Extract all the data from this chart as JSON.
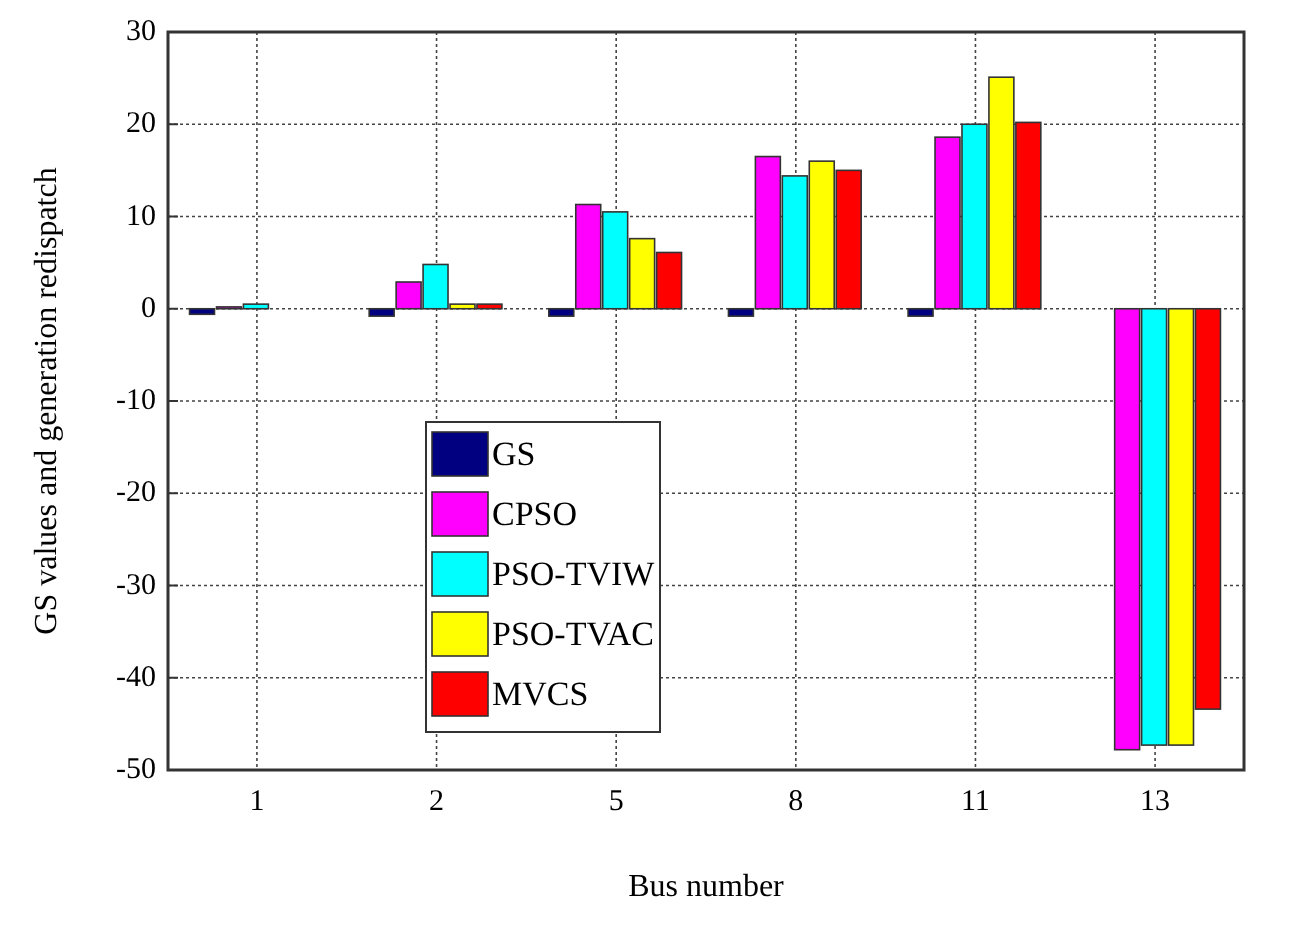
{
  "chart_data": {
    "type": "bar",
    "xlabel": "Bus number",
    "ylabel": "GS values and generation redispatch",
    "categories": [
      "1",
      "2",
      "5",
      "8",
      "11",
      "13"
    ],
    "series": [
      {
        "name": "GS",
        "color": "#000080",
        "values": [
          -0.6,
          -0.8,
          -0.8,
          -0.8,
          -0.8,
          0
        ]
      },
      {
        "name": "CPSO",
        "color": "#ff00ff",
        "values": [
          0.2,
          2.9,
          11.3,
          16.5,
          18.6,
          -47.8
        ]
      },
      {
        "name": "PSO-TVIW",
        "color": "#00ffff",
        "values": [
          0.5,
          4.8,
          10.5,
          14.4,
          20,
          -47.3
        ]
      },
      {
        "name": "PSO-TVAC",
        "color": "#ffff00",
        "values": [
          null,
          0.5,
          7.6,
          16,
          25.1,
          -47.3
        ]
      },
      {
        "name": "MVCS",
        "color": "#ff0000",
        "values": [
          null,
          0.5,
          6.1,
          15,
          20.2,
          -43.4
        ]
      }
    ],
    "ylim": [
      -50,
      30
    ],
    "yticks": [
      -50,
      -40,
      -30,
      -20,
      -10,
      0,
      10,
      20,
      30
    ],
    "grid": true,
    "legend": "bottom left"
  }
}
